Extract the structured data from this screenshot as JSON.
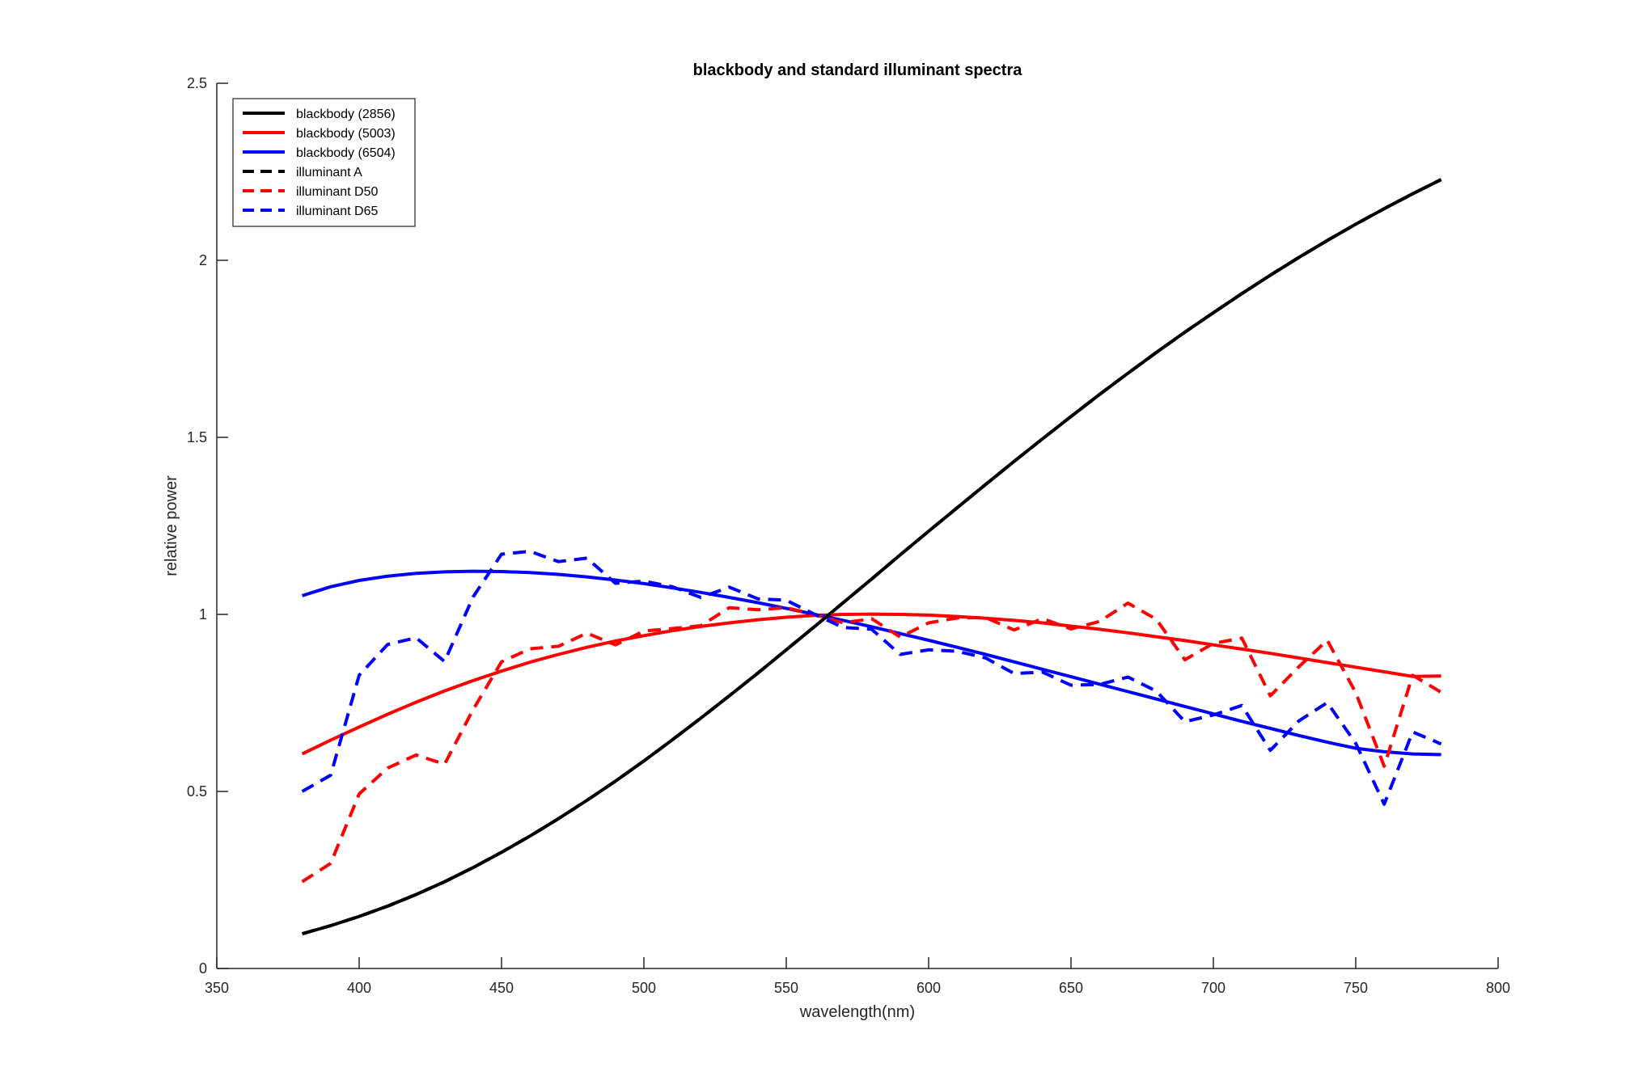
{
  "chart_data": {
    "type": "line",
    "title": "blackbody and standard illuminant spectra",
    "xlabel": "wavelength(nm)",
    "ylabel": "relative power",
    "xlim": [
      350,
      800
    ],
    "ylim": [
      0,
      2.5
    ],
    "xticks": [
      350,
      400,
      450,
      500,
      550,
      600,
      650,
      700,
      750,
      800
    ],
    "yticks": [
      0,
      0.5,
      1,
      1.5,
      2,
      2.5
    ],
    "xtick_labels": [
      "350",
      "400",
      "450",
      "500",
      "550",
      "600",
      "650",
      "700",
      "750",
      "800"
    ],
    "ytick_labels": [
      "0",
      "0.5",
      "1",
      "1.5",
      "2",
      "2.5"
    ],
    "grid": false,
    "legend_position": "top-left",
    "x": [
      380,
      390,
      400,
      410,
      420,
      430,
      440,
      450,
      460,
      470,
      480,
      490,
      500,
      510,
      520,
      530,
      540,
      550,
      560,
      570,
      580,
      590,
      600,
      610,
      620,
      630,
      640,
      650,
      660,
      670,
      680,
      690,
      700,
      710,
      720,
      730,
      740,
      750,
      760,
      770,
      780
    ],
    "series": [
      {
        "name": "blackbody (2856)",
        "color": "#000000",
        "style": "solid",
        "values": [
          0.098,
          0.121,
          0.147,
          0.176,
          0.209,
          0.245,
          0.285,
          0.328,
          0.374,
          0.423,
          0.475,
          0.529,
          0.586,
          0.646,
          0.707,
          0.77,
          0.834,
          0.9,
          0.966,
          1.033,
          1.1,
          1.168,
          1.235,
          1.301,
          1.367,
          1.432,
          1.496,
          1.559,
          1.621,
          1.681,
          1.74,
          1.797,
          1.852,
          1.906,
          1.958,
          2.008,
          2.056,
          2.102,
          2.146,
          2.188,
          2.228
        ]
      },
      {
        "name": "blackbody (5003)",
        "color": "#ff0000",
        "style": "solid",
        "values": [
          0.606,
          0.645,
          0.682,
          0.718,
          0.752,
          0.784,
          0.813,
          0.84,
          0.865,
          0.887,
          0.907,
          0.925,
          0.94,
          0.954,
          0.966,
          0.976,
          0.985,
          0.992,
          0.997,
          1.0,
          1.001,
          1.0,
          0.998,
          0.994,
          0.989,
          0.983,
          0.976,
          0.967,
          0.958,
          0.948,
          0.937,
          0.926,
          0.914,
          0.902,
          0.89,
          0.877,
          0.864,
          0.851,
          0.838,
          0.825,
          0.826
        ]
      },
      {
        "name": "blackbody (6504)",
        "color": "#0000ff",
        "style": "solid",
        "values": [
          1.053,
          1.078,
          1.096,
          1.108,
          1.116,
          1.12,
          1.122,
          1.121,
          1.118,
          1.113,
          1.106,
          1.097,
          1.087,
          1.075,
          1.062,
          1.048,
          1.033,
          1.017,
          1.0,
          0.983,
          0.965,
          0.946,
          0.927,
          0.907,
          0.887,
          0.866,
          0.845,
          0.824,
          0.803,
          0.782,
          0.761,
          0.74,
          0.719,
          0.698,
          0.678,
          0.658,
          0.639,
          0.622,
          0.612,
          0.606,
          0.604
        ]
      },
      {
        "name": "illuminant A",
        "color": "#000000",
        "style": "dashed",
        "values": [
          0.098,
          0.121,
          0.147,
          0.176,
          0.209,
          0.245,
          0.285,
          0.328,
          0.374,
          0.423,
          0.475,
          0.529,
          0.586,
          0.646,
          0.707,
          0.77,
          0.834,
          0.9,
          0.966,
          1.033,
          1.1,
          1.168,
          1.235,
          1.301,
          1.367,
          1.432,
          1.496,
          1.559,
          1.621,
          1.681,
          1.74,
          1.797,
          1.852,
          1.906,
          1.958,
          2.008,
          2.056,
          2.102,
          2.146,
          2.188,
          2.228
        ]
      },
      {
        "name": "illuminant D50",
        "color": "#ff0000",
        "style": "dashed",
        "values": [
          0.245,
          0.297,
          0.493,
          0.566,
          0.603,
          0.577,
          0.731,
          0.866,
          0.903,
          0.91,
          0.947,
          0.914,
          0.953,
          0.96,
          0.968,
          1.019,
          1.013,
          1.019,
          1.0,
          0.976,
          0.988,
          0.936,
          0.976,
          0.99,
          0.991,
          0.956,
          0.988,
          0.959,
          0.98,
          1.032,
          0.986,
          0.872,
          0.918,
          0.933,
          0.77,
          0.852,
          0.927,
          0.779,
          0.571,
          0.828,
          0.78
        ]
      },
      {
        "name": "illuminant D65",
        "color": "#0000ff",
        "style": "dashed",
        "values": [
          0.5,
          0.546,
          0.828,
          0.915,
          0.934,
          0.867,
          1.049,
          1.17,
          1.178,
          1.149,
          1.159,
          1.088,
          1.094,
          1.078,
          1.048,
          1.077,
          1.044,
          1.04,
          1.0,
          0.963,
          0.958,
          0.887,
          0.9,
          0.896,
          0.877,
          0.833,
          0.837,
          0.8,
          0.802,
          0.823,
          0.783,
          0.697,
          0.716,
          0.743,
          0.616,
          0.699,
          0.751,
          0.636,
          0.464,
          0.668,
          0.634
        ]
      }
    ]
  }
}
